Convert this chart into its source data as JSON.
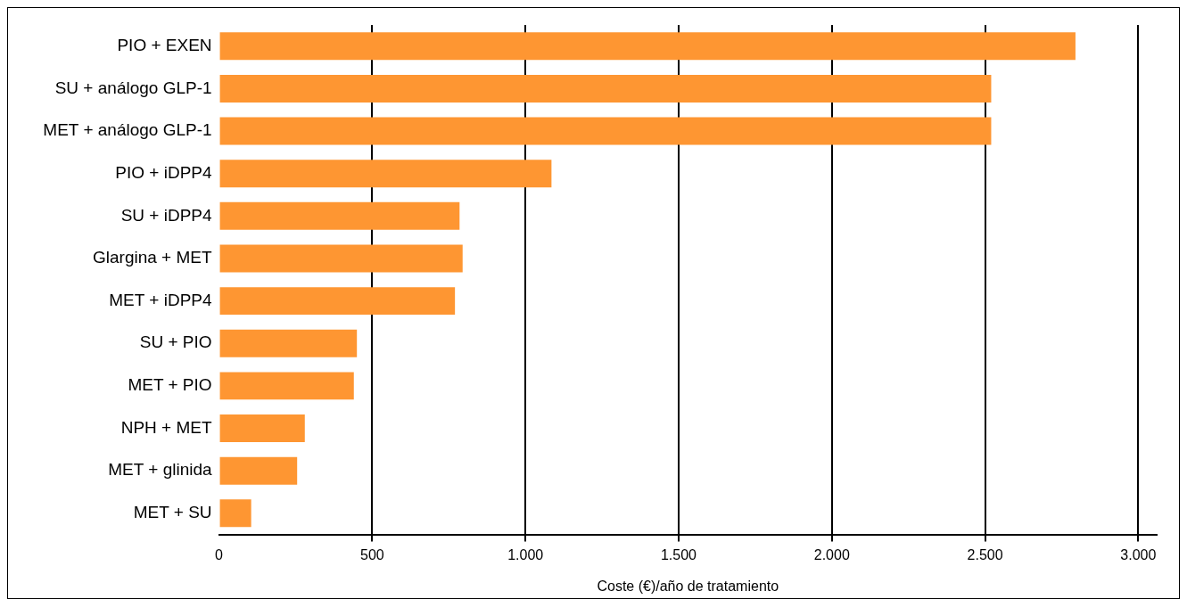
{
  "chart_data": {
    "type": "bar",
    "orientation": "horizontal",
    "xlabel": "Coste (€)/año de tratamiento",
    "categories": [
      "PIO + EXEN",
      "SU + análogo GLP-1",
      "MET + análogo GLP-1",
      "PIO + iDPP4",
      "SU + iDPP4",
      "Glargina + MET",
      "MET + iDPP4",
      "SU + PIO",
      "MET + PIO",
      "NPH + MET",
      "MET + glinida",
      "MET + SU"
    ],
    "values": [
      2795,
      2520,
      2520,
      1085,
      785,
      795,
      770,
      450,
      440,
      280,
      255,
      105
    ],
    "color": "#fe9632",
    "xlim": [
      0,
      3060
    ],
    "xticks": [
      0,
      500,
      {
        "value": 1000,
        "label": "1.000"
      },
      {
        "value": 1500,
        "label": "1.500"
      },
      {
        "value": 2000,
        "label": "2.000"
      },
      {
        "value": 2500,
        "label": "2.500"
      },
      {
        "value": 3000,
        "label": "3.000"
      }
    ],
    "grid": "x"
  }
}
